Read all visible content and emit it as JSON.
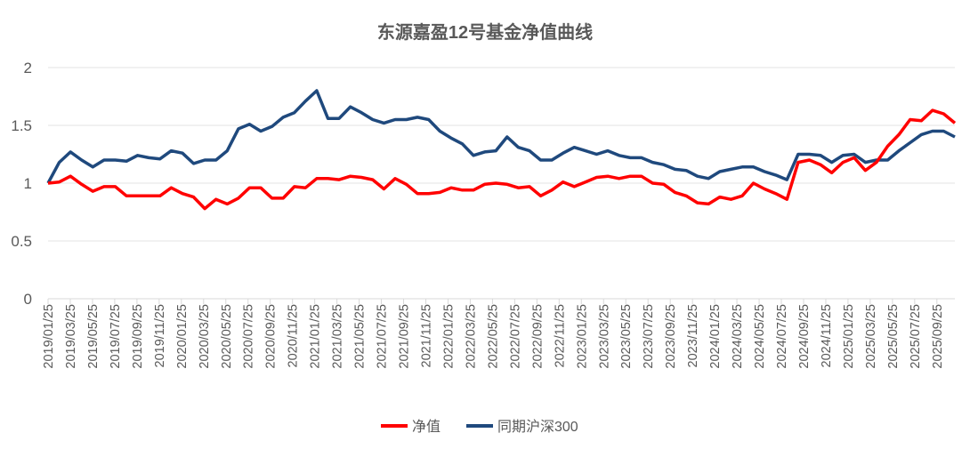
{
  "chart_data": {
    "type": "line",
    "title": "东源嘉盈12号基金净值曲线",
    "xlabel": "",
    "ylabel": "",
    "ylim": [
      0,
      2
    ],
    "yticks": [
      "0",
      "0.5",
      "1",
      "1.5",
      "2"
    ],
    "ytick_values": [
      0,
      0.5,
      1,
      1.5,
      2
    ],
    "grid": true,
    "legend_position": "bottom",
    "x_tick_labels": [
      "2019/01/25",
      "2019/03/25",
      "2019/05/25",
      "2019/07/25",
      "2019/09/25",
      "2019/11/25",
      "2020/01/25",
      "2020/03/25",
      "2020/05/25",
      "2020/07/25",
      "2020/09/25",
      "2020/11/25",
      "2021/01/25",
      "2021/03/25",
      "2021/05/25",
      "2021/07/25",
      "2021/09/25",
      "2021/11/25",
      "2022/01/25",
      "2022/03/25",
      "2022/05/25",
      "2022/07/25",
      "2022/09/25",
      "2022/11/25",
      "2023/01/25",
      "2023/03/25",
      "2023/05/25",
      "2023/07/25",
      "2023/09/25",
      "2023/11/25",
      "2024/01/25",
      "2024/03/25",
      "2024/05/25",
      "2024/07/25",
      "2024/09/25",
      "2024/11/25",
      "2025/01/25",
      "2025/03/25",
      "2025/05/25",
      "2025/07/25",
      "2025/09/25"
    ],
    "series": [
      {
        "name": "净值",
        "color": "#ff0000",
        "values": [
          1.0,
          1.01,
          1.06,
          0.99,
          0.93,
          0.97,
          0.97,
          0.89,
          0.89,
          0.89,
          0.89,
          0.96,
          0.91,
          0.88,
          0.78,
          0.86,
          0.82,
          0.87,
          0.96,
          0.96,
          0.87,
          0.87,
          0.97,
          0.96,
          1.04,
          1.04,
          1.03,
          1.06,
          1.05,
          1.03,
          0.95,
          1.04,
          0.99,
          0.91,
          0.91,
          0.92,
          0.96,
          0.94,
          0.94,
          0.99,
          1.0,
          0.99,
          0.96,
          0.97,
          0.89,
          0.94,
          1.01,
          0.97,
          1.01,
          1.05,
          1.06,
          1.04,
          1.06,
          1.06,
          1.0,
          0.99,
          0.92,
          0.89,
          0.83,
          0.82,
          0.88,
          0.86,
          0.89,
          1.0,
          0.95,
          0.91,
          0.86,
          1.18,
          1.2,
          1.16,
          1.09,
          1.18,
          1.22,
          1.11,
          1.18,
          1.32,
          1.42,
          1.55,
          1.54,
          1.63,
          1.6,
          1.52
        ]
      },
      {
        "name": "同期沪深300",
        "color": "#1f497d",
        "values": [
          1.0,
          1.18,
          1.27,
          1.2,
          1.14,
          1.2,
          1.2,
          1.19,
          1.24,
          1.22,
          1.21,
          1.28,
          1.26,
          1.17,
          1.2,
          1.2,
          1.28,
          1.47,
          1.51,
          1.45,
          1.49,
          1.57,
          1.61,
          1.71,
          1.8,
          1.56,
          1.56,
          1.66,
          1.61,
          1.55,
          1.52,
          1.55,
          1.55,
          1.57,
          1.55,
          1.45,
          1.39,
          1.34,
          1.24,
          1.27,
          1.28,
          1.4,
          1.31,
          1.28,
          1.2,
          1.2,
          1.26,
          1.31,
          1.28,
          1.25,
          1.28,
          1.24,
          1.22,
          1.22,
          1.18,
          1.16,
          1.12,
          1.11,
          1.06,
          1.04,
          1.1,
          1.12,
          1.14,
          1.14,
          1.1,
          1.07,
          1.03,
          1.25,
          1.25,
          1.24,
          1.18,
          1.24,
          1.25,
          1.18,
          1.2,
          1.2,
          1.28,
          1.35,
          1.42,
          1.45,
          1.45,
          1.4
        ]
      }
    ]
  }
}
